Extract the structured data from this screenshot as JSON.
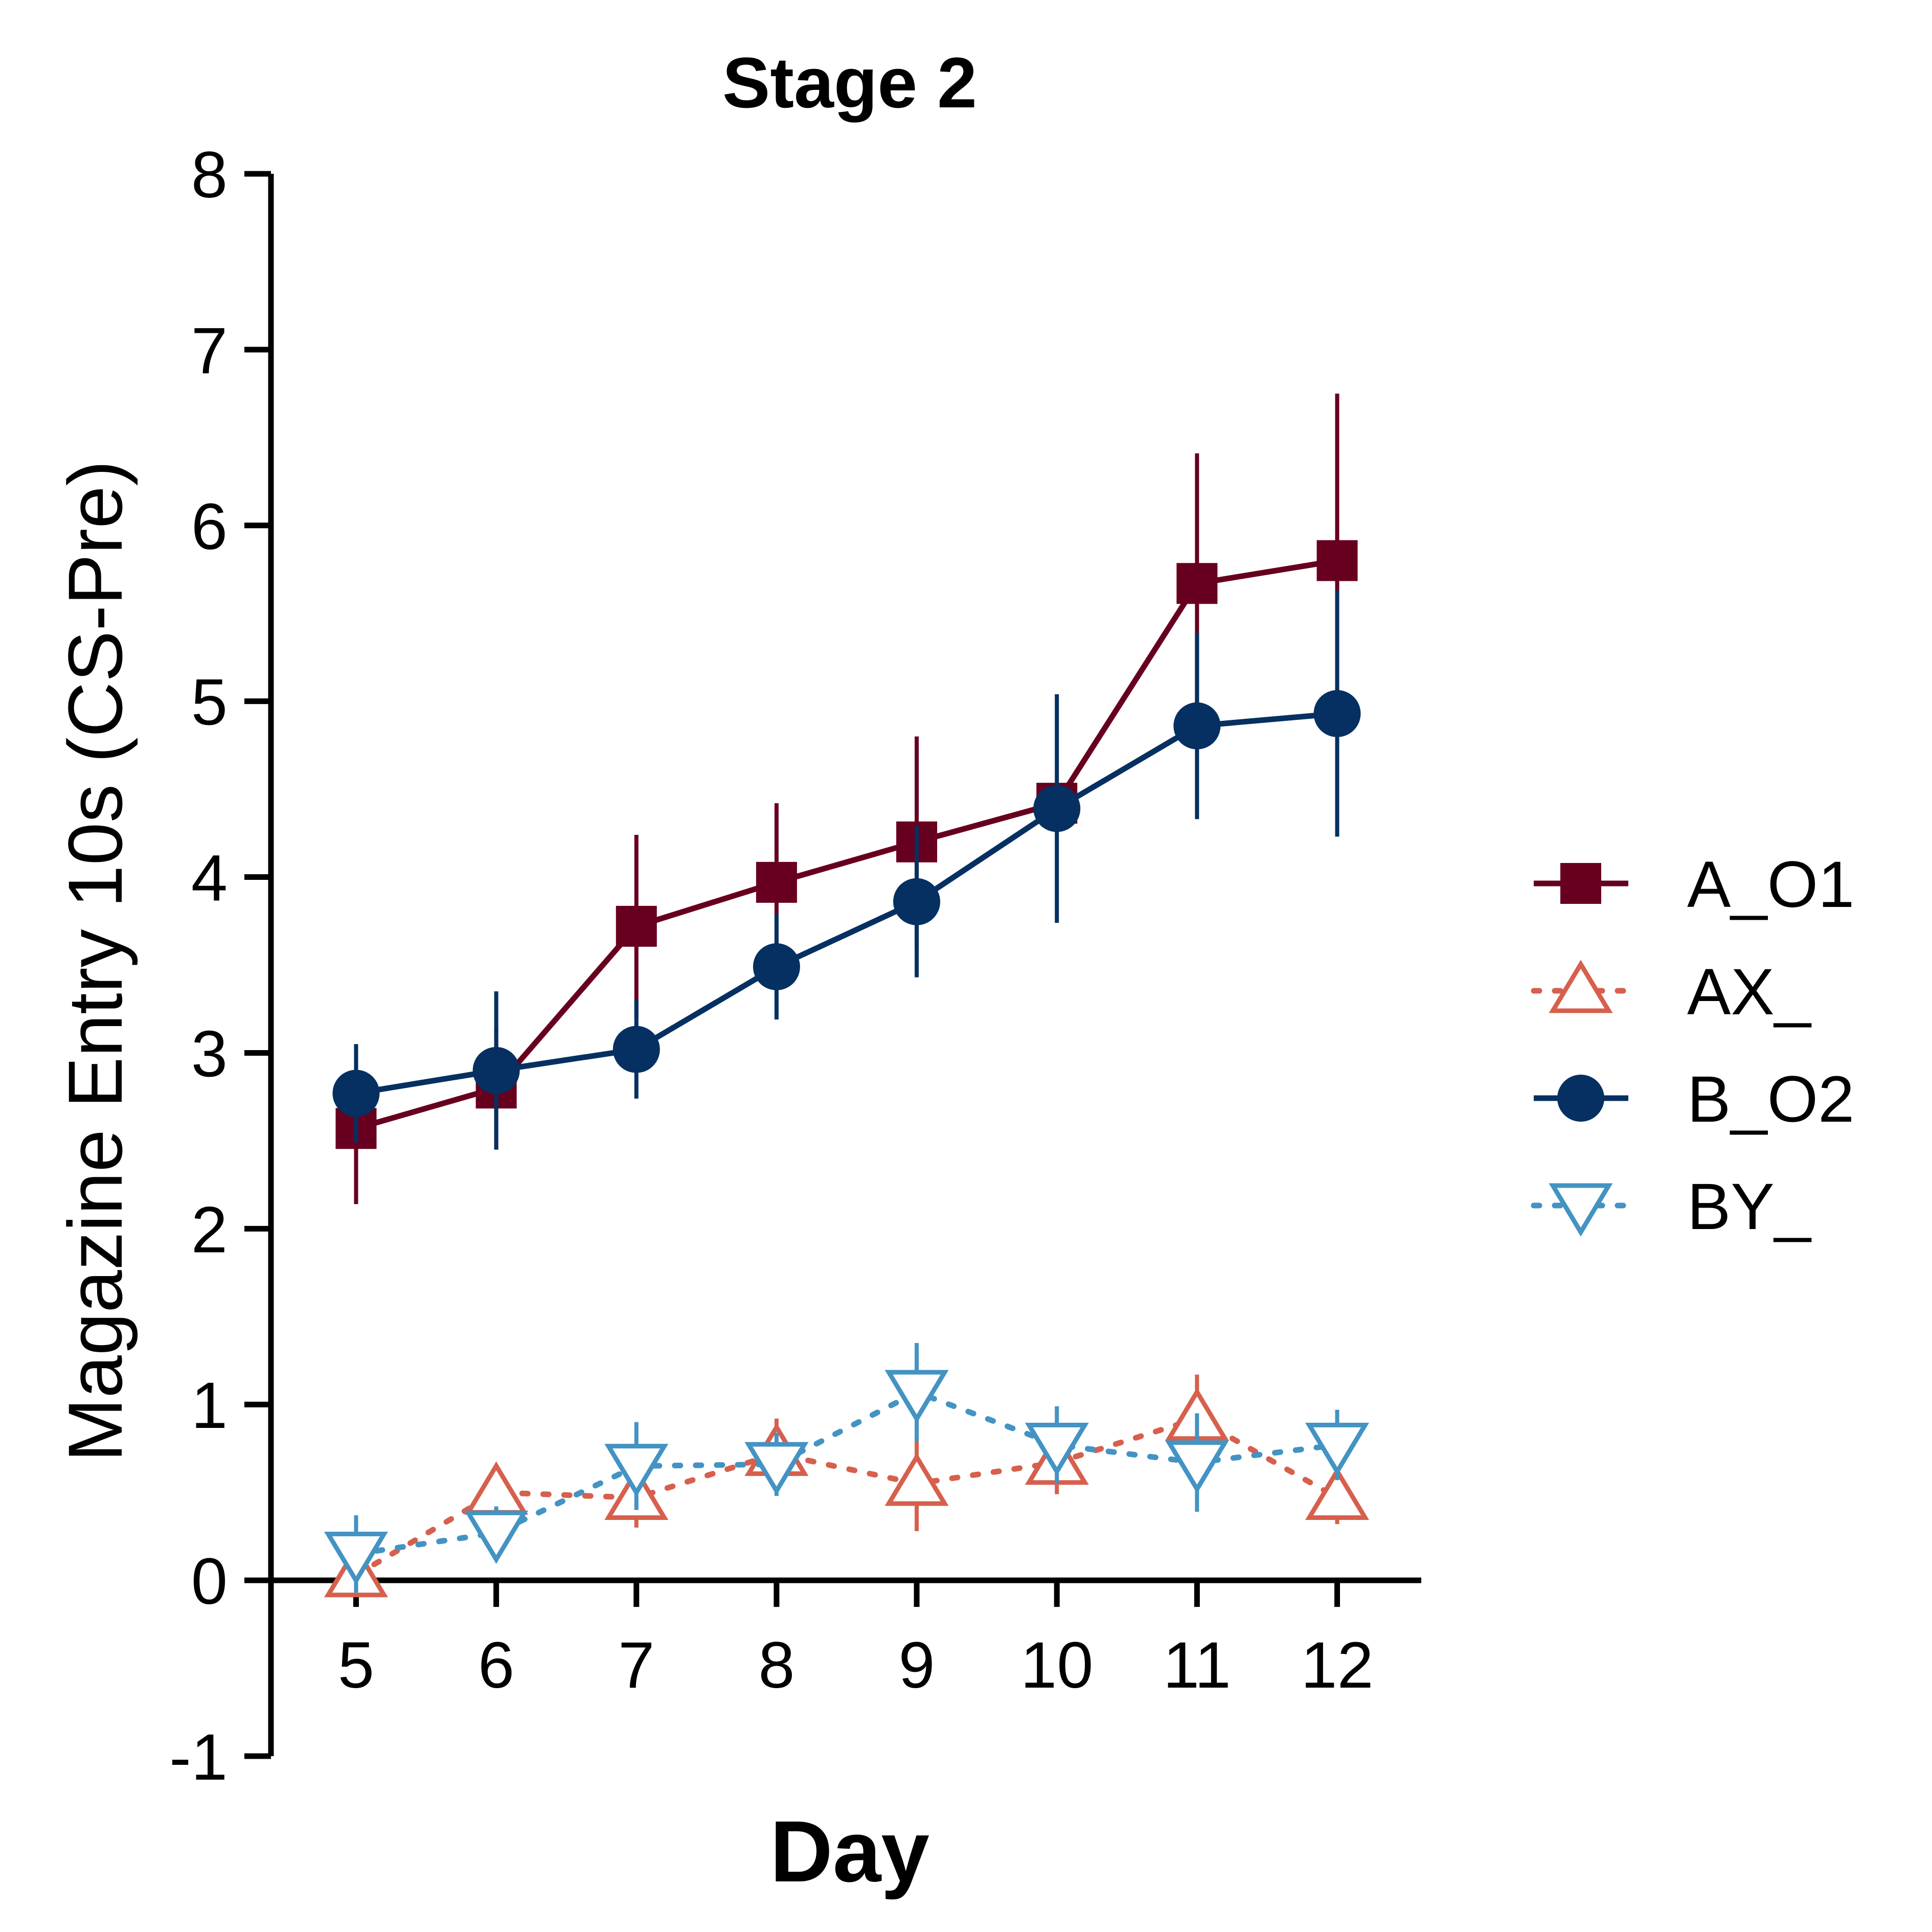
{
  "chart_data": {
    "type": "line",
    "title": "Stage 2",
    "xlabel": "Day",
    "ylabel": "Magazine Entry 10s (CS-Pre)",
    "xlim": [
      4.4,
      12.6
    ],
    "ylim": [
      -1,
      8
    ],
    "x_ticks": [
      5,
      6,
      7,
      8,
      9,
      10,
      11,
      12
    ],
    "y_ticks": [
      -1,
      0,
      1,
      2,
      3,
      4,
      5,
      6,
      7,
      8
    ],
    "legend_position": "right",
    "grid": false,
    "series": [
      {
        "name": "A_O1",
        "color": "#67001f",
        "marker": "square",
        "filled": true,
        "line_style": "solid",
        "x": [
          5,
          6,
          7,
          8,
          9,
          10,
          11,
          12
        ],
        "values": [
          2.57,
          2.8,
          3.72,
          3.97,
          4.2,
          4.42,
          5.67,
          5.8
        ],
        "error": [
          0.43,
          0.35,
          0.52,
          0.45,
          0.6,
          0.1,
          0.74,
          0.95
        ]
      },
      {
        "name": "AX_",
        "color": "#d6604d",
        "marker": "triangle-up",
        "filled": false,
        "line_style": "dotted",
        "x": [
          5,
          6,
          7,
          8,
          9,
          10,
          11,
          12
        ],
        "values": [
          0.03,
          0.5,
          0.47,
          0.72,
          0.55,
          0.67,
          0.92,
          0.47
        ],
        "error": [
          0.12,
          0.12,
          0.17,
          0.2,
          0.27,
          0.18,
          0.25,
          0.15
        ]
      },
      {
        "name": "B_O2",
        "color": "#053061",
        "marker": "circle",
        "filled": true,
        "line_style": "solid",
        "x": [
          5,
          6,
          7,
          8,
          9,
          10,
          11,
          12
        ],
        "values": [
          2.77,
          2.9,
          3.02,
          3.49,
          3.86,
          4.39,
          4.86,
          4.93
        ],
        "error": [
          0.28,
          0.45,
          0.28,
          0.3,
          0.43,
          0.65,
          0.53,
          0.7
        ]
      },
      {
        "name": "BY_",
        "color": "#4393c3",
        "marker": "triangle-down",
        "filled": false,
        "line_style": "dotted",
        "x": [
          5,
          6,
          7,
          8,
          9,
          10,
          11,
          12
        ],
        "values": [
          0.15,
          0.27,
          0.65,
          0.66,
          1.07,
          0.77,
          0.67,
          0.77
        ],
        "error": [
          0.22,
          0.15,
          0.25,
          0.18,
          0.28,
          0.22,
          0.28,
          0.2
        ]
      }
    ]
  }
}
